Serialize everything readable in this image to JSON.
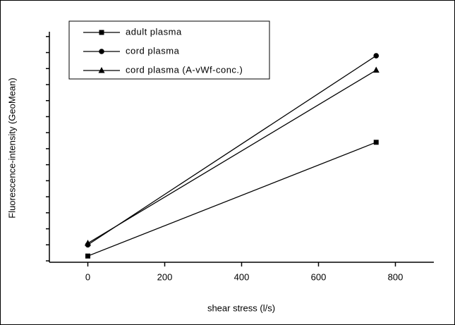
{
  "chart_data": {
    "type": "line",
    "x_label": "shear stress (l/s)",
    "y_label": "Fluorescence-intensity (GeoMean)",
    "x": [
      0,
      750
    ],
    "series": [
      {
        "name": "adult plasma",
        "color": "#000000",
        "marker": "square",
        "values": [
          0.3,
          7.4
        ]
      },
      {
        "name": "cord plasma",
        "color": "#000000",
        "marker": "circle",
        "values": [
          1.0,
          12.8
        ]
      },
      {
        "name": "cord plasma (A-vWf-conc.)",
        "color": "#000000",
        "marker": "triangle",
        "values": [
          1.1,
          11.9
        ]
      }
    ],
    "xlim": [
      -100,
      900
    ],
    "xticks": [
      0,
      200,
      400,
      600,
      800
    ],
    "ylim": [
      0,
      14.3
    ],
    "yticks": [
      0,
      1,
      2,
      3,
      4,
      5,
      6,
      7,
      8,
      9,
      10,
      11,
      12,
      13,
      14
    ],
    "legend": "top-left"
  }
}
